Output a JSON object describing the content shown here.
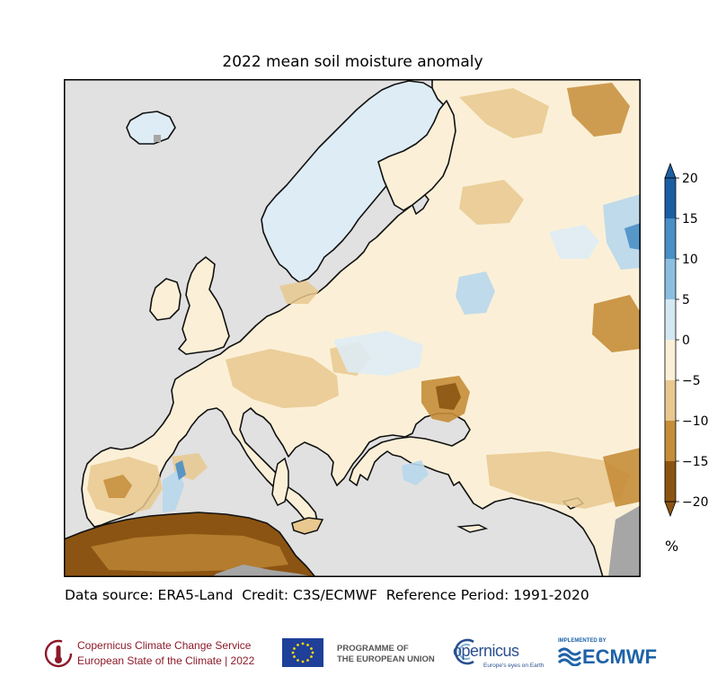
{
  "title": "2022 mean soil moisture anomaly",
  "credit_line": "Data source: ERA5-Land  Credit: C3S/ECMWF  Reference Period: 1991-2020",
  "colorbar": {
    "unit": "%",
    "ticks": [
      "20",
      "15",
      "10",
      "5",
      "0",
      "−5",
      "−10",
      "−15",
      "−20"
    ],
    "colors": [
      "#1b5fa3",
      "#4a8fc6",
      "#8bbfe0",
      "#d4e8f4",
      "#fbf0d7",
      "#e8c88e",
      "#c58d3a",
      "#8c5412"
    ]
  },
  "colors": {
    "sea": "#e1e1e1",
    "no_data": "#a6a6a6",
    "coast": "#111111"
  },
  "logos": {
    "c3s_line1": "Copernicus Climate Change Service",
    "c3s_line2": "European State of the Climate | 2022",
    "eu_line1": "PROGRAMME OF",
    "eu_line2": "THE EUROPEAN UNION",
    "copernicus": "opernicus",
    "copernicus_tagline": "Europe's eyes on Earth",
    "ecmwf_implemented": "IMPLEMENTED BY",
    "ecmwf": "ECMWF"
  }
}
